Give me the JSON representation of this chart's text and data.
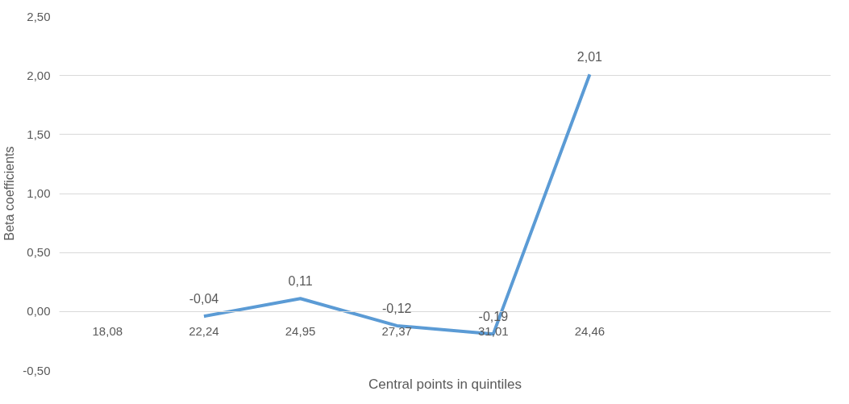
{
  "chart_data": {
    "type": "line",
    "xlabel": "Central points in quintiles",
    "ylabel": "Beta coefficients",
    "categories": [
      "18,08",
      "22,24",
      "24,95",
      "27,37",
      "31,01",
      "24,46",
      null,
      null
    ],
    "series": [
      {
        "color": "#5b9bd5",
        "values": [
          null,
          -0.04,
          0.11,
          -0.12,
          -0.19,
          2.01,
          null,
          null
        ],
        "value_labels": [
          null,
          "-0,04",
          "0,11",
          "-0,12",
          "-0,19",
          "2,01",
          null,
          null
        ]
      }
    ],
    "ylim": [
      -0.5,
      2.5
    ],
    "yticks": [
      {
        "value": -0.5,
        "label": "-0,50"
      },
      {
        "value": 0,
        "label": "0,00"
      },
      {
        "value": 0.5,
        "label": "0,50"
      },
      {
        "value": 1,
        "label": "1,00"
      },
      {
        "value": 1.5,
        "label": "1,50"
      },
      {
        "value": 2,
        "label": "2,00"
      },
      {
        "value": 2.5,
        "label": "2,50"
      }
    ],
    "grid": "y",
    "marker": "none",
    "line_style": "solid"
  }
}
